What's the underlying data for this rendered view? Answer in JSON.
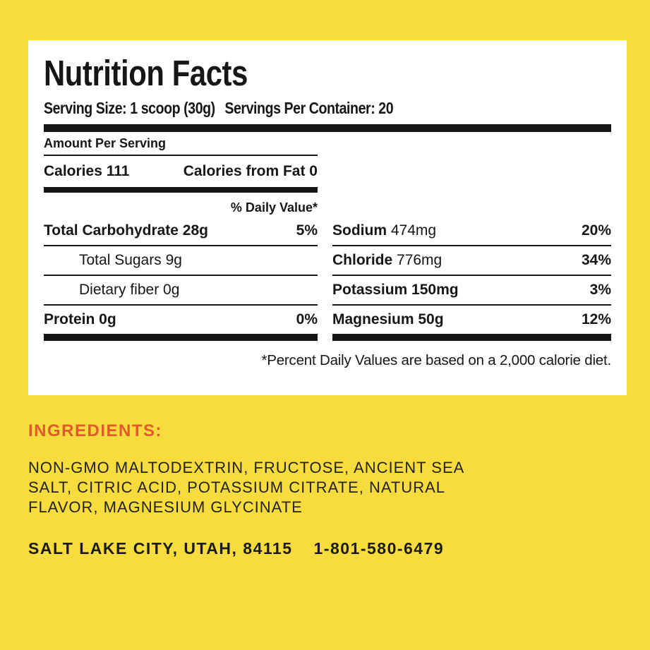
{
  "page": {
    "background_color": "#F8DB3C",
    "panel_color": "#FFFFFF",
    "rule_color": "#161616"
  },
  "label": {
    "title": "Nutrition Facts",
    "serving_size": "Serving Size: 1 scoop (30g)",
    "servings_per_container": "Servings Per Container: 20",
    "amount_per_serving": "Amount Per Serving",
    "calories": "Calories 111",
    "calories_from_fat": "Calories from Fat 0",
    "daily_value_header": "% Daily Value*",
    "left_rows": [
      {
        "name": "Total Carbohydrate 28g",
        "dv": "5%"
      },
      {
        "name": "Total Sugars 9g",
        "dv": ""
      },
      {
        "name": "Dietary fiber 0g",
        "dv": ""
      },
      {
        "name": "Protein 0g",
        "dv": "0%"
      }
    ],
    "right_rows": [
      {
        "name": "Sodium",
        "amount": "474mg",
        "dv": "20%"
      },
      {
        "name": "Chloride",
        "amount": "776mg",
        "dv": "34%"
      },
      {
        "name": "Potassium",
        "amount": "150mg",
        "dv": "3%"
      },
      {
        "name": "Magnesium",
        "amount": "50g",
        "dv": "12%"
      }
    ],
    "footnote": "*Percent Daily Values are based on a 2,000 calorie diet."
  },
  "ingredients": {
    "heading": "INGREDIENTS:",
    "heading_color": "#E05A2B",
    "lines": [
      "NON-GMO MALTODEXTRIN, FRUCTOSE, ANCIENT SEA",
      "SALT, CITRIC ACID, POTASSIUM CITRATE, NATURAL",
      "FLAVOR, MAGNESIUM GLYCINATE"
    ]
  },
  "footer": {
    "address": "SALT LAKE CITY, UTAH, 84115",
    "phone": "1-801-580-6479"
  }
}
